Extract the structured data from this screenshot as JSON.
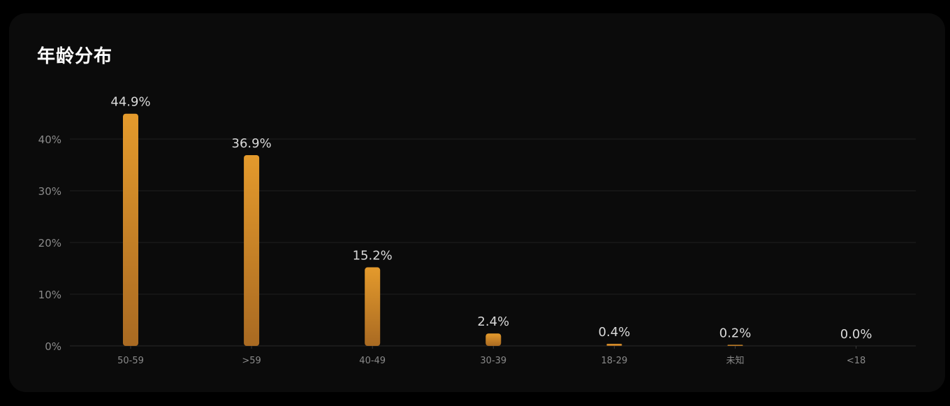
{
  "card": {
    "title": "年龄分布"
  },
  "colors": {
    "background": "#000000",
    "card_background": "#0b0b0b",
    "bar_top": "#e49a2c",
    "bar_bottom": "#a96a22",
    "gridline": "#1f1f1f",
    "tick_label": "#8a8a8a",
    "value_label": "#d9d9d9"
  },
  "chart_data": {
    "type": "bar",
    "categories": [
      "50-59",
      ">59",
      "40-49",
      "30-39",
      "18-29",
      "未知",
      "<18"
    ],
    "values": [
      44.9,
      36.9,
      15.2,
      2.4,
      0.4,
      0.2,
      0.0
    ],
    "value_labels": [
      "44.9%",
      "36.9%",
      "15.2%",
      "2.4%",
      "0.4%",
      "0.2%",
      "0.0%"
    ],
    "title": "年龄分布",
    "xlabel": "",
    "ylabel": "",
    "ylim": [
      0,
      40
    ],
    "yticks": [
      0,
      10,
      20,
      30,
      40
    ],
    "ytick_labels": [
      "0%",
      "10%",
      "20%",
      "30%",
      "40%"
    ],
    "grid": true
  }
}
